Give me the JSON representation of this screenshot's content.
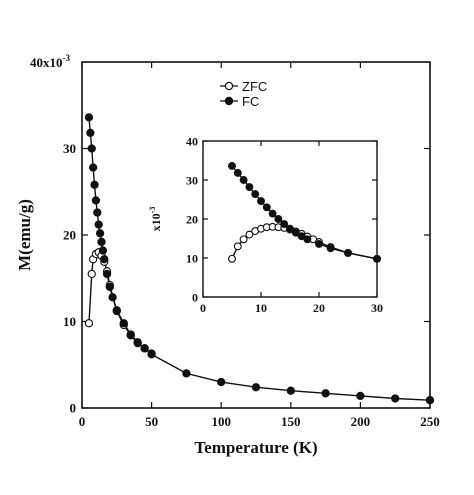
{
  "chart_data": [
    {
      "id": "main",
      "type": "line",
      "xlabel": "Temperature (K)",
      "ylabel": "M(emu/g)",
      "y_multiplier_label": "40x10",
      "y_multiplier_exp": "-3",
      "xlim": [
        0,
        250
      ],
      "ylim": [
        0,
        40
      ],
      "x_ticks": [
        0,
        50,
        100,
        150,
        200,
        250
      ],
      "y_ticks": [
        0,
        10,
        20,
        30
      ],
      "grid": false,
      "legend_position": "top-center",
      "series": [
        {
          "name": "ZFC",
          "marker": "open-circle",
          "points": [
            [
              5,
              9.8
            ],
            [
              7,
              15.5
            ],
            [
              8,
              17.2
            ],
            [
              10,
              17.8
            ],
            [
              12,
              18.0
            ],
            [
              14,
              17.6
            ],
            [
              16,
              16.9
            ],
            [
              18,
              15.8
            ],
            [
              20,
              14.2
            ],
            [
              25,
              11.2
            ],
            [
              30,
              9.6
            ],
            [
              35,
              8.4
            ],
            [
              40,
              7.5
            ],
            [
              45,
              6.9
            ],
            [
              50,
              6.3
            ]
          ]
        },
        {
          "name": "FC",
          "marker": "filled-circle",
          "points": [
            [
              5,
              33.6
            ],
            [
              6,
              31.8
            ],
            [
              7,
              30.0
            ],
            [
              8,
              27.8
            ],
            [
              9,
              25.8
            ],
            [
              10,
              24.0
            ],
            [
              11,
              22.6
            ],
            [
              12,
              21.2
            ],
            [
              13,
              20.2
            ],
            [
              14,
              19.2
            ],
            [
              15,
              18.2
            ],
            [
              16,
              17.2
            ],
            [
              18,
              15.5
            ],
            [
              20,
              14.0
            ],
            [
              22,
              12.8
            ],
            [
              25,
              11.3
            ],
            [
              30,
              9.8
            ],
            [
              35,
              8.5
            ],
            [
              40,
              7.6
            ],
            [
              45,
              6.9
            ],
            [
              50,
              6.2
            ],
            [
              75,
              4.0
            ],
            [
              100,
              3.0
            ],
            [
              125,
              2.4
            ],
            [
              150,
              2.0
            ],
            [
              175,
              1.7
            ],
            [
              200,
              1.4
            ],
            [
              225,
              1.1
            ],
            [
              250,
              0.9
            ]
          ]
        }
      ]
    },
    {
      "id": "inset",
      "type": "line",
      "xlabel": "",
      "ylabel": "x10",
      "ylabel_exp": "-3",
      "xlim": [
        0,
        30
      ],
      "ylim": [
        0,
        40
      ],
      "x_ticks": [
        0,
        10,
        20,
        30
      ],
      "y_ticks": [
        0,
        10,
        20,
        30,
        40
      ],
      "grid": false,
      "series": [
        {
          "name": "ZFC",
          "marker": "open-circle",
          "points": [
            [
              5,
              9.8
            ],
            [
              6,
              13.0
            ],
            [
              7,
              14.8
            ],
            [
              8,
              16.0
            ],
            [
              9,
              16.9
            ],
            [
              10,
              17.5
            ],
            [
              11,
              17.9
            ],
            [
              12,
              18.0
            ],
            [
              13,
              17.9
            ],
            [
              14,
              17.7
            ],
            [
              15,
              17.3
            ],
            [
              16,
              16.8
            ],
            [
              17,
              16.2
            ],
            [
              18,
              15.5
            ],
            [
              19,
              14.8
            ],
            [
              20,
              14.1
            ],
            [
              22,
              12.8
            ],
            [
              25,
              11.3
            ],
            [
              30,
              9.8
            ]
          ]
        },
        {
          "name": "FC",
          "marker": "filled-circle",
          "points": [
            [
              5,
              33.6
            ],
            [
              6,
              31.8
            ],
            [
              7,
              30.0
            ],
            [
              8,
              28.2
            ],
            [
              9,
              26.4
            ],
            [
              10,
              24.6
            ],
            [
              11,
              23.0
            ],
            [
              12,
              21.4
            ],
            [
              13,
              20.0
            ],
            [
              14,
              18.7
            ],
            [
              15,
              17.5
            ],
            [
              16,
              16.5
            ],
            [
              17,
              15.6
            ],
            [
              18,
              14.8
            ],
            [
              20,
              13.6
            ],
            [
              22,
              12.5
            ],
            [
              25,
              11.3
            ],
            [
              30,
              9.8
            ]
          ]
        }
      ]
    }
  ]
}
